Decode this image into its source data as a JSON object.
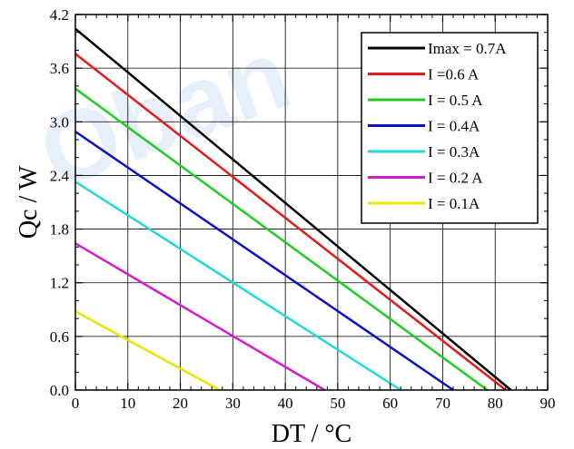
{
  "chart_data": {
    "type": "line",
    "xlabel": "DT / °C",
    "ylabel": "Qc / W",
    "xlim": [
      0,
      90
    ],
    "ylim": [
      0,
      4.2
    ],
    "xticks": [
      "0",
      "10",
      "20",
      "30",
      "40",
      "50",
      "60",
      "70",
      "80",
      "90"
    ],
    "yticks": [
      "0.0",
      "0.6",
      "1.2",
      "1.8",
      "2.4",
      "3.0",
      "3.6",
      "4.2"
    ],
    "grid": true,
    "legend_position": "top-right",
    "series": [
      {
        "name": "Imax = 0.7A",
        "color": "#000000",
        "x": [
          0,
          83
        ],
        "y": [
          4.04,
          0
        ]
      },
      {
        "name": "I =0.6 A",
        "color": "#e11b1b",
        "x": [
          0,
          82
        ],
        "y": [
          3.76,
          0
        ]
      },
      {
        "name": "I = 0.5 A",
        "color": "#22cc22",
        "x": [
          0,
          78.5
        ],
        "y": [
          3.37,
          0
        ]
      },
      {
        "name": "I = 0.4A",
        "color": "#0a10c4",
        "x": [
          0,
          72
        ],
        "y": [
          2.89,
          0
        ]
      },
      {
        "name": "I = 0.3A",
        "color": "#22d8d8",
        "x": [
          0,
          62
        ],
        "y": [
          2.33,
          0
        ]
      },
      {
        "name": "I = 0.2 A",
        "color": "#d21cd2",
        "x": [
          0,
          47.5
        ],
        "y": [
          1.64,
          0
        ]
      },
      {
        "name": "I = 0.1A",
        "color": "#e6e600",
        "x": [
          0,
          27.5
        ],
        "y": [
          0.88,
          0
        ]
      }
    ]
  },
  "watermark": {
    "text": "Oban"
  }
}
